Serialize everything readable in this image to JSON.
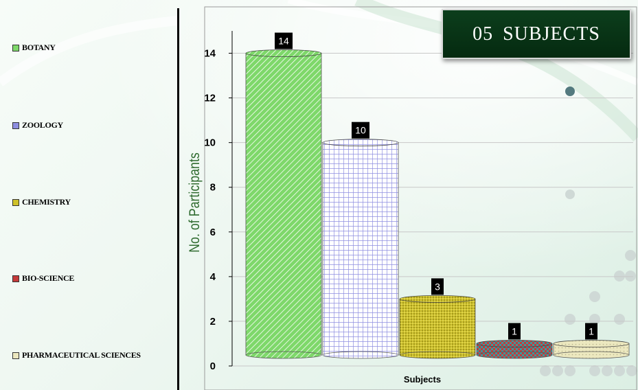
{
  "slide": {
    "title": "05 SUBJECTS"
  },
  "legend": {
    "items": [
      {
        "label": "BOTANY",
        "pattern": "diagonal",
        "color": "#7ed86a"
      },
      {
        "label": "ZOOLOGY",
        "pattern": "grid",
        "color": "#8e8ee0"
      },
      {
        "label": "CHEMISTRY",
        "pattern": "dots",
        "color": "#cfc22a"
      },
      {
        "label": "BIO-SCIENCE",
        "pattern": "checker",
        "color": "#c43a3a"
      },
      {
        "label": "PHARMACEUTICAL SCIENCES",
        "pattern": "light-dots",
        "color": "#ece8bf"
      }
    ]
  },
  "chart_data": {
    "type": "bar",
    "categories": [
      "BOTANY",
      "ZOOLOGY",
      "CHEMISTRY",
      "BIO-SCIENCE",
      "PHARMACEUTICAL SCIENCES"
    ],
    "values": [
      14,
      10,
      3,
      1,
      1
    ],
    "data_labels": [
      "14",
      "10",
      "3",
      "1",
      "1"
    ],
    "title": "",
    "xlabel": "Subjects",
    "ylabel": "No. of  Participants",
    "ylim": [
      0,
      15
    ],
    "yticks": [
      0,
      2,
      4,
      6,
      8,
      10,
      12,
      14
    ],
    "grid": true,
    "legend_position": "left",
    "colors": {
      "bars": [
        "#7ed86a",
        "#8e8ee0",
        "#cfc22a",
        "#c43a3a",
        "#ece8bf"
      ],
      "ylabel": "#2e6a2e"
    }
  }
}
